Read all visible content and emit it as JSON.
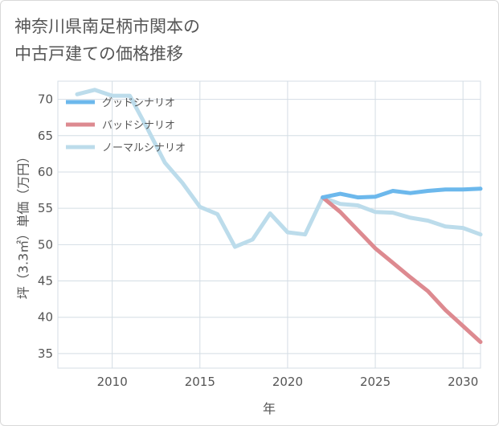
{
  "title_lines": [
    "神奈川県南足柄市関本の",
    "中古戸建ての価格推移"
  ],
  "chart_data": {
    "type": "line",
    "title": "神奈川県南足柄市関本の中古戸建ての価格推移",
    "xlabel": "年",
    "ylabel": "坪（3.3㎡）単価（万円）",
    "xlim": [
      2006.9,
      2031
    ],
    "ylim": [
      33,
      72.5
    ],
    "xticks": [
      2010,
      2015,
      2020,
      2025,
      2030
    ],
    "yticks": [
      35,
      40,
      45,
      50,
      55,
      60,
      65,
      70
    ],
    "legend_position": "top-left",
    "series": [
      {
        "name": "グッドシナリオ",
        "color": "#6cb8ec",
        "x": [
          2022,
          2023,
          2024,
          2025,
          2026,
          2027,
          2028,
          2029,
          2030,
          2031
        ],
        "values": [
          56.5,
          57.0,
          56.5,
          56.6,
          57.4,
          57.1,
          57.4,
          57.6,
          57.6,
          57.7
        ]
      },
      {
        "name": "バッドシナリオ",
        "color": "#dd8a90",
        "x": [
          2022,
          2023,
          2024,
          2025,
          2026,
          2027,
          2028,
          2029,
          2030,
          2031
        ],
        "values": [
          56.5,
          54.5,
          52.0,
          49.5,
          47.5,
          45.5,
          43.6,
          41.0,
          38.8,
          36.6
        ]
      },
      {
        "name": "ノーマルシナリオ",
        "color": "#bcdceb",
        "x": [
          2008,
          2009,
          2010,
          2011,
          2012,
          2013,
          2014,
          2015,
          2016,
          2017,
          2018,
          2019,
          2020,
          2021,
          2022,
          2023,
          2024,
          2025,
          2026,
          2027,
          2028,
          2029,
          2030,
          2031
        ],
        "values": [
          70.7,
          71.3,
          70.5,
          70.5,
          66.0,
          61.3,
          58.5,
          55.2,
          54.2,
          49.7,
          50.7,
          54.3,
          51.7,
          51.4,
          56.5,
          55.6,
          55.4,
          54.5,
          54.4,
          53.7,
          53.3,
          52.5,
          52.3,
          51.4
        ]
      }
    ]
  }
}
